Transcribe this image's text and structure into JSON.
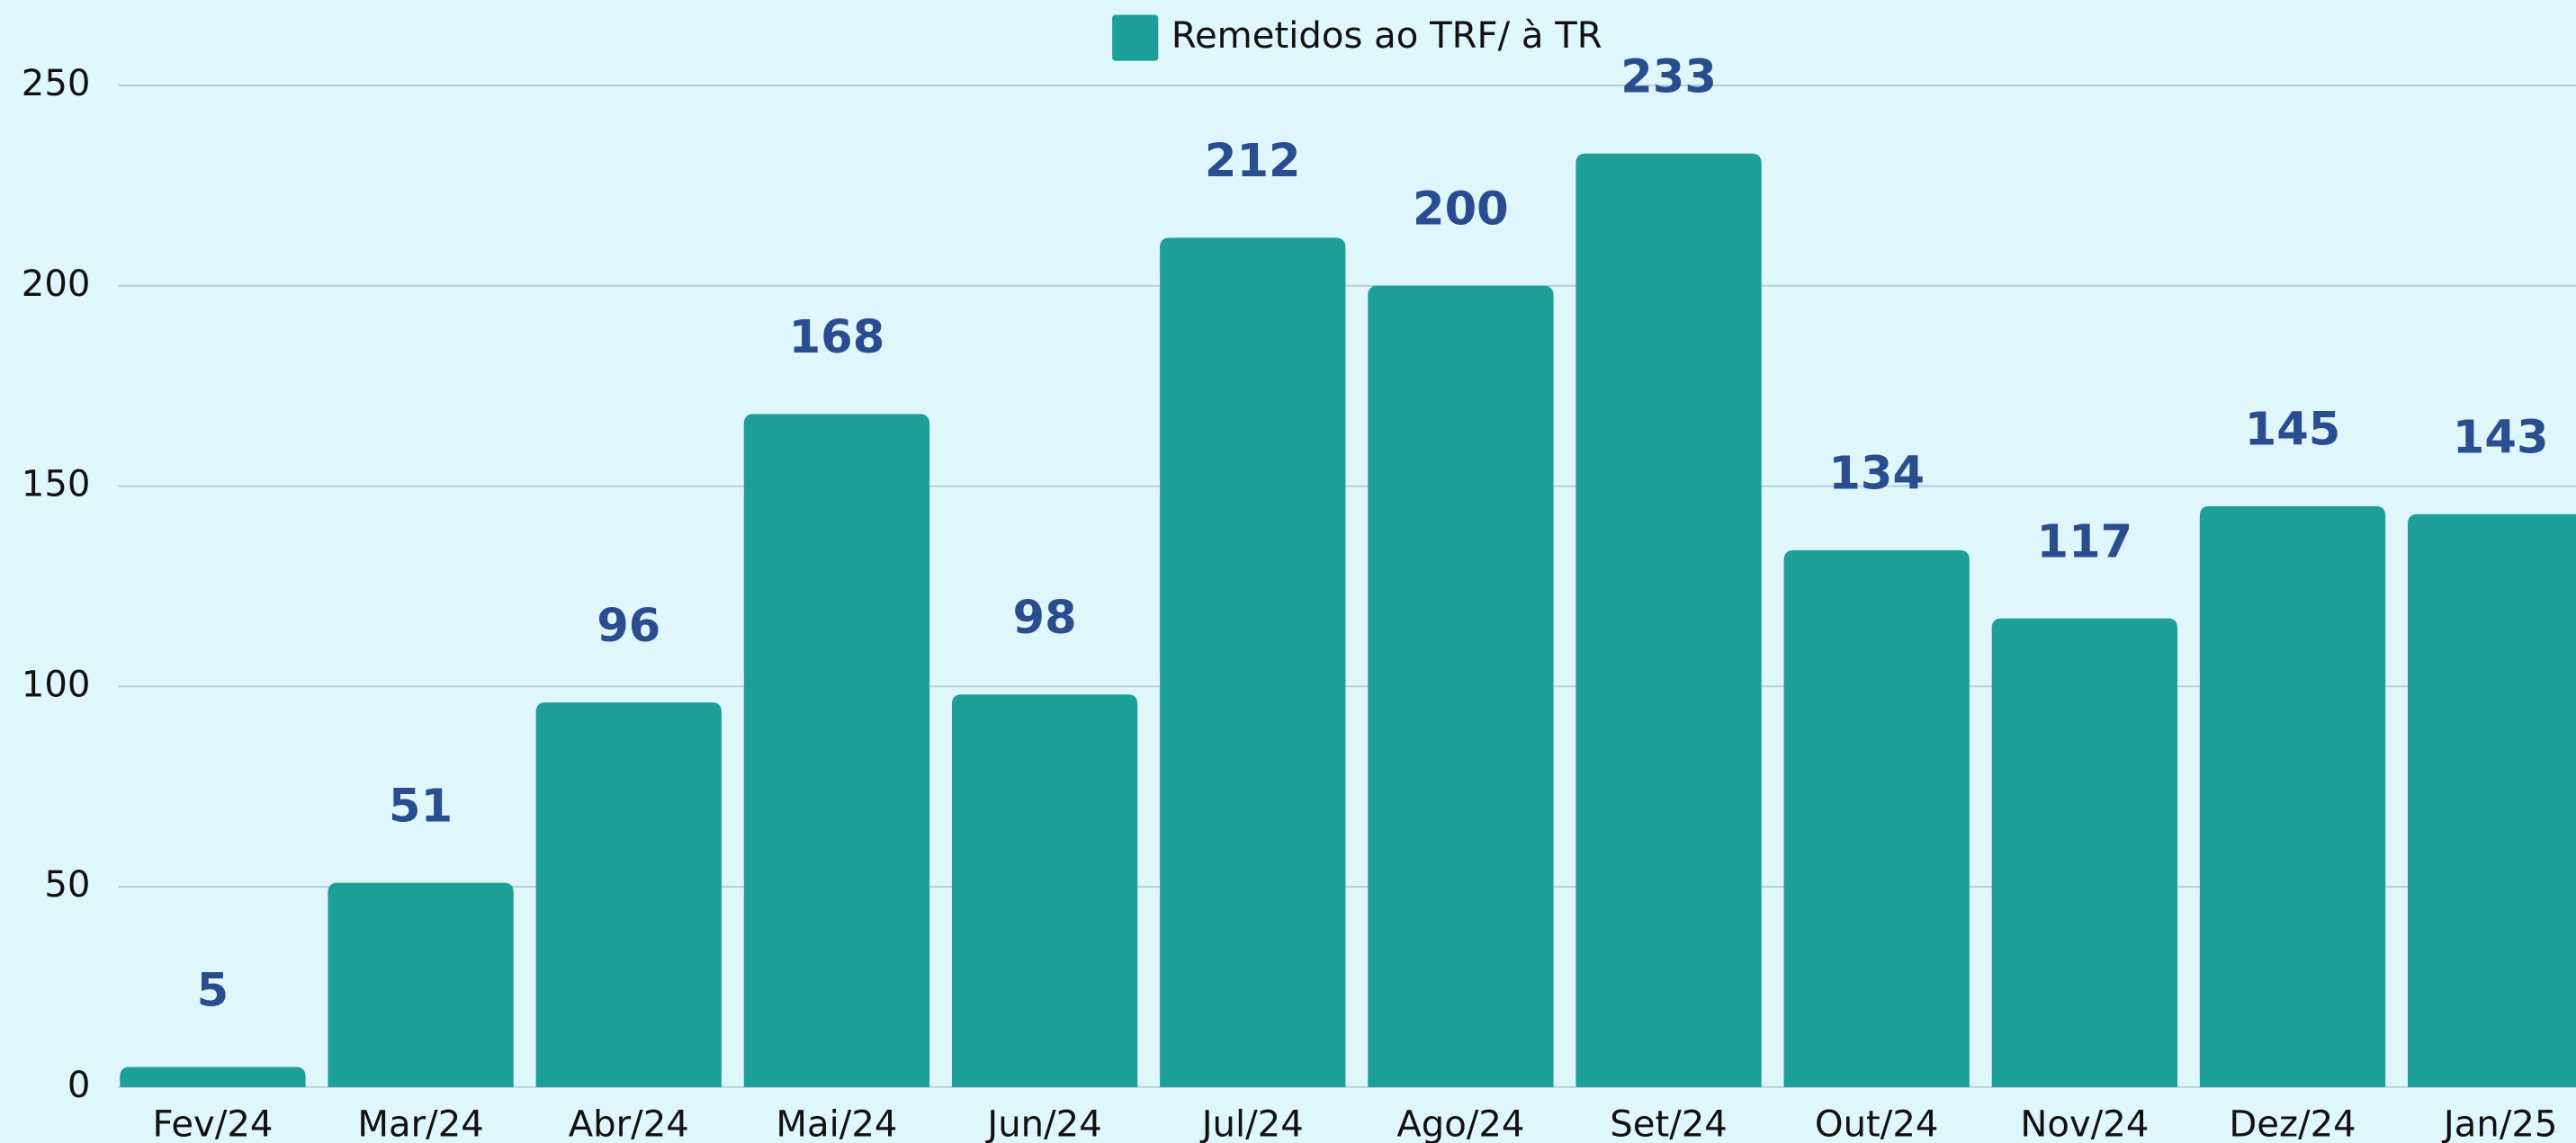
{
  "chart_data": {
    "type": "bar",
    "legend": "Remetidos ao TRF/ à TR",
    "categories": [
      "Fev/24",
      "Mar/24",
      "Abr/24",
      "Mai/24",
      "Jun/24",
      "Jul/24",
      "Ago/24",
      "Set/24",
      "Out/24",
      "Nov/24",
      "Dez/24",
      "Jan/25"
    ],
    "series": [
      {
        "name": "Remetidos ao TRF/ à TR",
        "color": "#1e9e98",
        "values": [
          5,
          51,
          96,
          168,
          98,
          212,
          200,
          233,
          134,
          117,
          145,
          143
        ]
      }
    ],
    "ylim": [
      0,
      250
    ],
    "yticks": [
      0,
      50,
      100,
      150,
      200,
      250
    ],
    "grid": true,
    "legend_position": "top"
  }
}
